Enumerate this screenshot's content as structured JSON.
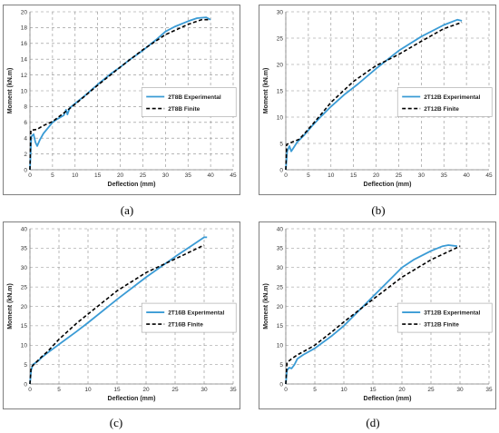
{
  "colors": {
    "experimental": "#3a9bd5",
    "finite": "#000000"
  },
  "chart_data": [
    {
      "type": "line",
      "caption": "(a)",
      "xlabel": "Deflection (mm)",
      "ylabel": "Moment (kN.m)",
      "xlim": [
        0,
        45
      ],
      "ylim": [
        0,
        20
      ],
      "xticks": [
        0,
        5,
        10,
        15,
        20,
        25,
        30,
        35,
        40,
        45
      ],
      "yticks": [
        0,
        2,
        4,
        6,
        8,
        10,
        12,
        14,
        16,
        18,
        20
      ],
      "grid": true,
      "legend_position": "right-middle",
      "series": [
        {
          "name": "2T8B Experimental",
          "style": "solid",
          "points": [
            [
              0,
              0
            ],
            [
              0.3,
              4.2
            ],
            [
              0.8,
              4.5
            ],
            [
              1.2,
              3.5
            ],
            [
              1.6,
              3.0
            ],
            [
              2.2,
              3.8
            ],
            [
              3,
              4.6
            ],
            [
              4,
              5.3
            ],
            [
              5,
              6.0
            ],
            [
              6,
              6.4
            ],
            [
              7.5,
              6.9
            ],
            [
              8,
              7.6
            ],
            [
              8.3,
              7.0
            ],
            [
              8.8,
              7.8
            ],
            [
              10,
              8.4
            ],
            [
              12,
              9.3
            ],
            [
              15,
              10.8
            ],
            [
              18,
              12.2
            ],
            [
              20,
              13.0
            ],
            [
              22,
              13.9
            ],
            [
              25,
              15.1
            ],
            [
              28,
              16.5
            ],
            [
              30,
              17.5
            ],
            [
              32,
              18.1
            ],
            [
              35,
              18.8
            ],
            [
              37,
              19.2
            ],
            [
              39,
              19.3
            ],
            [
              40,
              19.0
            ]
          ]
        },
        {
          "name": "2T8B Finite",
          "style": "dashed",
          "points": [
            [
              0,
              0
            ],
            [
              0.2,
              5.0
            ],
            [
              1.5,
              5.1
            ],
            [
              3,
              5.6
            ],
            [
              5,
              6.1
            ],
            [
              8,
              7.4
            ],
            [
              10,
              8.3
            ],
            [
              15,
              10.7
            ],
            [
              20,
              13.0
            ],
            [
              25,
              15.2
            ],
            [
              30,
              17.1
            ],
            [
              35,
              18.4
            ],
            [
              38,
              19.0
            ],
            [
              39.5,
              19.0
            ]
          ]
        }
      ]
    },
    {
      "type": "line",
      "caption": "(b)",
      "xlabel": "Deflection (mm)",
      "ylabel": "Moment (kN.m)",
      "xlim": [
        0,
        45
      ],
      "ylim": [
        0,
        30
      ],
      "xticks": [
        0,
        5,
        10,
        15,
        20,
        25,
        30,
        35,
        40,
        45
      ],
      "yticks": [
        0,
        5,
        10,
        15,
        20,
        25,
        30
      ],
      "grid": true,
      "legend_position": "right-middle",
      "series": [
        {
          "name": "2T12B Experimental",
          "style": "solid",
          "points": [
            [
              0,
              0
            ],
            [
              0.3,
              3.5
            ],
            [
              0.8,
              4.5
            ],
            [
              1.2,
              3.5
            ],
            [
              1.8,
              4.3
            ],
            [
              2.5,
              5.2
            ],
            [
              4,
              6.5
            ],
            [
              6,
              8.5
            ],
            [
              8,
              10.3
            ],
            [
              10,
              12.0
            ],
            [
              13,
              14.3
            ],
            [
              16,
              16.3
            ],
            [
              20,
              19.2
            ],
            [
              25,
              22.6
            ],
            [
              30,
              25.3
            ],
            [
              35,
              27.5
            ],
            [
              38,
              28.5
            ],
            [
              39,
              28.3
            ]
          ]
        },
        {
          "name": "2T12B Finite",
          "style": "dashed",
          "points": [
            [
              0,
              0
            ],
            [
              0.2,
              4.8
            ],
            [
              1.5,
              5.3
            ],
            [
              3,
              5.8
            ],
            [
              5,
              7.7
            ],
            [
              8,
              10.7
            ],
            [
              10,
              12.8
            ],
            [
              15,
              16.8
            ],
            [
              20,
              19.8
            ],
            [
              22,
              20.6
            ],
            [
              25,
              21.9
            ],
            [
              30,
              24.4
            ],
            [
              35,
              26.8
            ],
            [
              39,
              28.0
            ]
          ]
        }
      ]
    },
    {
      "type": "line",
      "caption": "(c)",
      "xlabel": "Deflection (mm)",
      "ylabel": "Moment (kN.m)",
      "xlim": [
        0,
        35
      ],
      "ylim": [
        0,
        40
      ],
      "xticks": [
        0,
        5,
        10,
        15,
        20,
        25,
        30,
        35
      ],
      "yticks": [
        0,
        5,
        10,
        15,
        20,
        25,
        30,
        35,
        40
      ],
      "grid": true,
      "legend_position": "right-middle",
      "series": [
        {
          "name": "2T16B Experimental",
          "style": "solid",
          "points": [
            [
              0,
              0
            ],
            [
              0.2,
              3.5
            ],
            [
              0.5,
              5.0
            ],
            [
              1,
              5.5
            ],
            [
              1.5,
              6.0
            ],
            [
              2,
              6.8
            ],
            [
              3,
              8.0
            ],
            [
              5,
              10.2
            ],
            [
              8,
              13.5
            ],
            [
              10,
              15.8
            ],
            [
              15,
              21.8
            ],
            [
              20,
              27.5
            ],
            [
              25,
              32.8
            ],
            [
              28,
              35.8
            ],
            [
              30,
              37.8
            ],
            [
              30.5,
              37.8
            ]
          ]
        },
        {
          "name": "2T16B Finite",
          "style": "dashed",
          "points": [
            [
              0,
              0
            ],
            [
              0.2,
              4.3
            ],
            [
              1,
              5.5
            ],
            [
              2,
              7.0
            ],
            [
              3,
              8.3
            ],
            [
              5,
              11.5
            ],
            [
              8,
              15.6
            ],
            [
              10,
              18.0
            ],
            [
              15,
              24.0
            ],
            [
              20,
              28.7
            ],
            [
              25,
              32.2
            ],
            [
              30,
              35.8
            ]
          ]
        }
      ]
    },
    {
      "type": "line",
      "caption": "(d)",
      "xlabel": "Deflection (mm)",
      "ylabel": "Moment (kN.m)",
      "xlim": [
        0,
        35
      ],
      "ylim": [
        0,
        40
      ],
      "xticks": [
        0,
        5,
        10,
        15,
        20,
        25,
        30,
        35
      ],
      "yticks": [
        0,
        5,
        10,
        15,
        20,
        25,
        30,
        35,
        40
      ],
      "grid": true,
      "legend_position": "right-middle",
      "series": [
        {
          "name": "3T12B Experimental",
          "style": "solid",
          "points": [
            [
              0,
              0
            ],
            [
              0.2,
              3.5
            ],
            [
              0.6,
              4.2
            ],
            [
              1,
              4.0
            ],
            [
              1.5,
              5.0
            ],
            [
              2,
              6.5
            ],
            [
              3,
              7.5
            ],
            [
              5,
              9.2
            ],
            [
              8,
              12.5
            ],
            [
              10,
              15.0
            ],
            [
              12,
              18.0
            ],
            [
              15,
              22.5
            ],
            [
              18,
              27.0
            ],
            [
              20,
              30.0
            ],
            [
              22,
              32.0
            ],
            [
              25,
              34.3
            ],
            [
              27,
              35.5
            ],
            [
              28,
              35.8
            ],
            [
              29.5,
              35.5
            ]
          ]
        },
        {
          "name": "3T12B Finite",
          "style": "dashed",
          "points": [
            [
              0,
              0
            ],
            [
              0.2,
              5.5
            ],
            [
              1,
              6.5
            ],
            [
              2,
              7.5
            ],
            [
              3,
              8.3
            ],
            [
              5,
              10.0
            ],
            [
              8,
              13.5
            ],
            [
              10,
              16.0
            ],
            [
              15,
              21.8
            ],
            [
              20,
              27.5
            ],
            [
              25,
              32.0
            ],
            [
              30,
              35.5
            ]
          ]
        }
      ]
    }
  ]
}
